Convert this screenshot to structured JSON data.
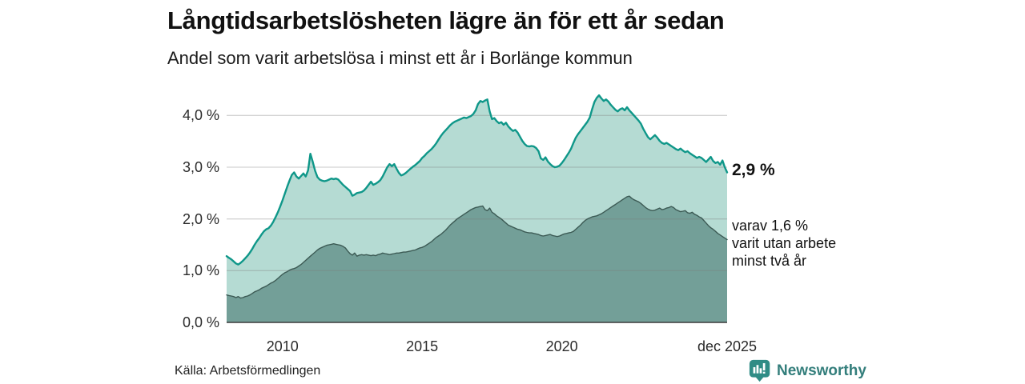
{
  "header": {
    "title": "Långtidsarbetslösheten lägre än för ett år sedan",
    "subtitle": "Andel som varit arbetslösa i minst ett år i Borlänge kommun"
  },
  "chart_data": {
    "type": "area",
    "title": "Långtidsarbetslösheten lägre än för ett år sedan",
    "subtitle": "Andel som varit arbetslösa i minst ett år i Borlänge kommun",
    "grid": true,
    "legend": "none",
    "x_axis": {
      "range": [
        2008.0,
        2025.917
      ],
      "ticks": [
        {
          "label": "2010",
          "year": 2010
        },
        {
          "label": "2015",
          "year": 2015
        },
        {
          "label": "2020",
          "year": 2020
        },
        {
          "label": "dec 2025",
          "year": 2025.917
        }
      ]
    },
    "y_axis": {
      "range": [
        0,
        4.5
      ],
      "unit": "%",
      "ticks": [
        {
          "label": "0,0 %",
          "value": 0
        },
        {
          "label": "1,0 %",
          "value": 1
        },
        {
          "label": "2,0 %",
          "value": 2
        },
        {
          "label": "3,0 %",
          "value": 3
        },
        {
          "label": "4,0 %",
          "value": 4
        }
      ]
    },
    "series": [
      {
        "name": "Arbetslösa minst ett år",
        "start_year": 2008.0,
        "step_months": 1,
        "line_color": "#0f9789",
        "fill_color": "#b5dbd3",
        "line_width": 2.4,
        "end_value": 2.9,
        "values": [
          1.28,
          1.25,
          1.22,
          1.18,
          1.14,
          1.12,
          1.15,
          1.19,
          1.24,
          1.29,
          1.35,
          1.42,
          1.5,
          1.57,
          1.63,
          1.7,
          1.76,
          1.8,
          1.82,
          1.87,
          1.94,
          2.03,
          2.13,
          2.24,
          2.36,
          2.49,
          2.62,
          2.74,
          2.85,
          2.9,
          2.82,
          2.78,
          2.83,
          2.88,
          2.82,
          2.94,
          3.26,
          3.1,
          2.93,
          2.81,
          2.76,
          2.74,
          2.73,
          2.74,
          2.76,
          2.78,
          2.77,
          2.78,
          2.76,
          2.71,
          2.66,
          2.62,
          2.58,
          2.54,
          2.45,
          2.47,
          2.5,
          2.51,
          2.52,
          2.55,
          2.6,
          2.66,
          2.72,
          2.66,
          2.68,
          2.71,
          2.75,
          2.82,
          2.91,
          3.0,
          3.06,
          3.02,
          3.06,
          2.97,
          2.89,
          2.84,
          2.86,
          2.89,
          2.93,
          2.97,
          3.01,
          3.04,
          3.08,
          3.12,
          3.18,
          3.22,
          3.27,
          3.31,
          3.35,
          3.4,
          3.46,
          3.53,
          3.6,
          3.66,
          3.71,
          3.76,
          3.81,
          3.85,
          3.88,
          3.9,
          3.92,
          3.94,
          3.96,
          3.95,
          3.97,
          3.99,
          4.03,
          4.1,
          4.22,
          4.28,
          4.26,
          4.29,
          4.31,
          4.08,
          3.93,
          3.95,
          3.89,
          3.85,
          3.87,
          3.82,
          3.86,
          3.79,
          3.74,
          3.7,
          3.72,
          3.67,
          3.59,
          3.51,
          3.45,
          3.41,
          3.4,
          3.41,
          3.4,
          3.37,
          3.31,
          3.17,
          3.14,
          3.19,
          3.11,
          3.06,
          3.02,
          3.0,
          3.01,
          3.03,
          3.08,
          3.14,
          3.21,
          3.28,
          3.36,
          3.47,
          3.57,
          3.64,
          3.7,
          3.76,
          3.82,
          3.88,
          3.96,
          4.12,
          4.26,
          4.34,
          4.39,
          4.33,
          4.28,
          4.31,
          4.27,
          4.21,
          4.16,
          4.11,
          4.08,
          4.12,
          4.14,
          4.1,
          4.16,
          4.1,
          4.05,
          4.0,
          3.95,
          3.9,
          3.84,
          3.74,
          3.66,
          3.58,
          3.54,
          3.58,
          3.62,
          3.57,
          3.51,
          3.47,
          3.45,
          3.47,
          3.44,
          3.41,
          3.38,
          3.35,
          3.33,
          3.36,
          3.32,
          3.29,
          3.31,
          3.27,
          3.24,
          3.21,
          3.18,
          3.2,
          3.18,
          3.14,
          3.1,
          3.15,
          3.2,
          3.12,
          3.08,
          3.1,
          3.05,
          3.13,
          3.0,
          2.9
        ]
      },
      {
        "name": "varav utan arbete minst två år",
        "start_year": 2008.0,
        "step_months": 1,
        "line_color": "#3c5a54",
        "fill_color": "#739f98",
        "line_width": 1.4,
        "end_value": 1.6,
        "values": [
          0.53,
          0.52,
          0.51,
          0.5,
          0.48,
          0.5,
          0.47,
          0.48,
          0.5,
          0.51,
          0.53,
          0.56,
          0.59,
          0.61,
          0.63,
          0.66,
          0.68,
          0.7,
          0.73,
          0.76,
          0.78,
          0.81,
          0.85,
          0.89,
          0.93,
          0.96,
          0.98,
          1.01,
          1.03,
          1.04,
          1.06,
          1.09,
          1.12,
          1.16,
          1.2,
          1.24,
          1.28,
          1.32,
          1.36,
          1.4,
          1.43,
          1.45,
          1.47,
          1.49,
          1.5,
          1.51,
          1.52,
          1.51,
          1.5,
          1.49,
          1.47,
          1.44,
          1.38,
          1.33,
          1.3,
          1.34,
          1.28,
          1.3,
          1.31,
          1.3,
          1.31,
          1.3,
          1.29,
          1.3,
          1.29,
          1.31,
          1.32,
          1.34,
          1.33,
          1.32,
          1.31,
          1.32,
          1.33,
          1.34,
          1.34,
          1.35,
          1.36,
          1.36,
          1.37,
          1.38,
          1.39,
          1.4,
          1.42,
          1.44,
          1.45,
          1.47,
          1.5,
          1.53,
          1.56,
          1.6,
          1.64,
          1.67,
          1.7,
          1.74,
          1.78,
          1.83,
          1.88,
          1.92,
          1.96,
          2.0,
          2.03,
          2.06,
          2.09,
          2.12,
          2.15,
          2.18,
          2.2,
          2.22,
          2.23,
          2.24,
          2.25,
          2.18,
          2.16,
          2.21,
          2.13,
          2.1,
          2.06,
          2.03,
          2.0,
          1.96,
          1.92,
          1.88,
          1.86,
          1.84,
          1.82,
          1.8,
          1.79,
          1.77,
          1.75,
          1.74,
          1.73,
          1.73,
          1.72,
          1.71,
          1.7,
          1.68,
          1.67,
          1.68,
          1.69,
          1.7,
          1.68,
          1.67,
          1.66,
          1.67,
          1.69,
          1.71,
          1.72,
          1.73,
          1.74,
          1.76,
          1.8,
          1.84,
          1.88,
          1.93,
          1.97,
          2.0,
          2.02,
          2.04,
          2.05,
          2.06,
          2.08,
          2.1,
          2.13,
          2.16,
          2.19,
          2.22,
          2.25,
          2.28,
          2.31,
          2.34,
          2.37,
          2.4,
          2.43,
          2.44,
          2.4,
          2.37,
          2.35,
          2.33,
          2.3,
          2.26,
          2.22,
          2.19,
          2.17,
          2.16,
          2.17,
          2.19,
          2.21,
          2.18,
          2.19,
          2.21,
          2.22,
          2.24,
          2.22,
          2.18,
          2.16,
          2.14,
          2.15,
          2.16,
          2.12,
          2.11,
          2.13,
          2.09,
          2.07,
          2.04,
          2.02,
          1.97,
          1.92,
          1.87,
          1.83,
          1.8,
          1.76,
          1.72,
          1.69,
          1.66,
          1.63,
          1.6
        ]
      }
    ],
    "annotations": {
      "end_value_label": "2,9 %",
      "sub_label_lines": [
        "varav 1,6 %",
        "varit utan arbete",
        "minst två år"
      ]
    }
  },
  "footer": {
    "source": "Källa: Arbetsförmedlingen",
    "brand": "Newsworthy"
  },
  "colors": {
    "accent_teal": "#0f9789",
    "light_fill": "#b5dbd3",
    "dark_fill": "#739f98",
    "dark_line": "#3c5a54",
    "baseline": "#3a3a3a",
    "brand_teal": "#337e7b"
  }
}
